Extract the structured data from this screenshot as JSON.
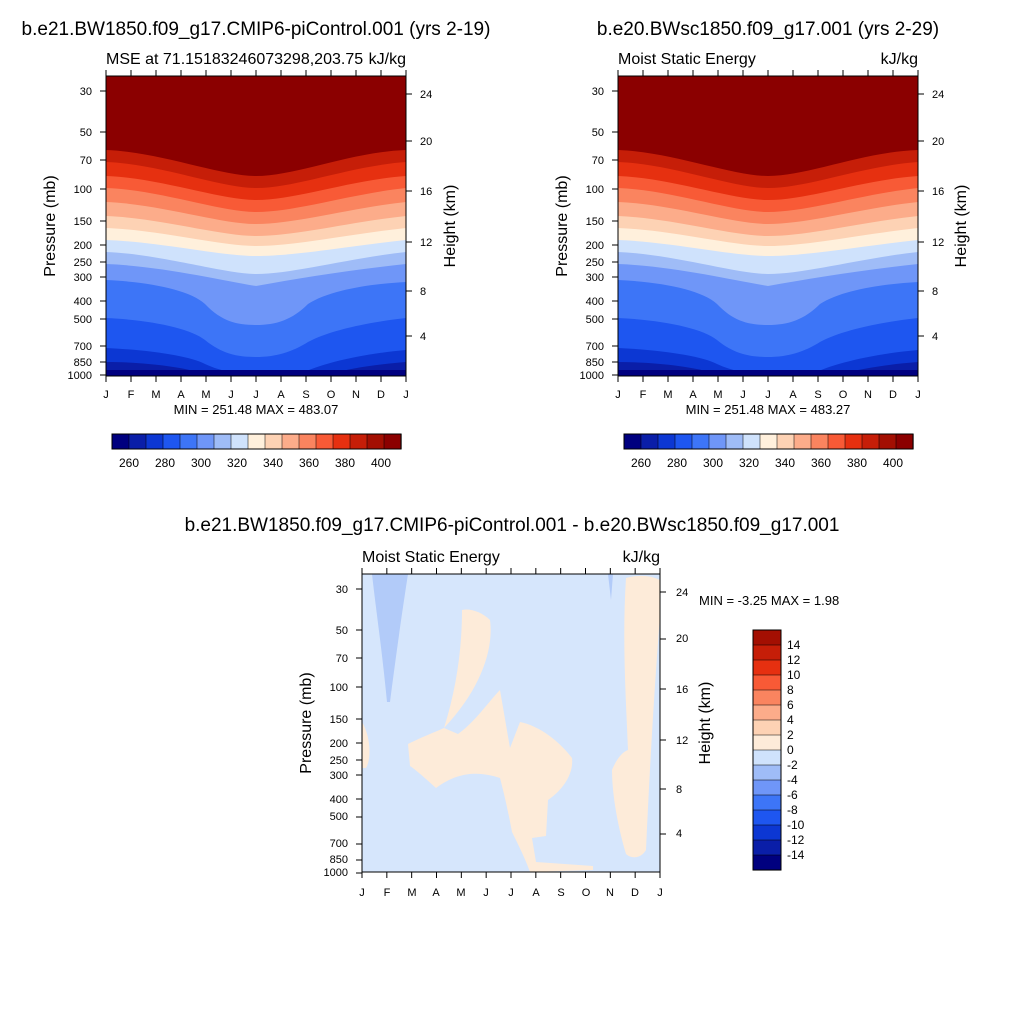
{
  "colors": {
    "mse_levels": [
      "#00007f",
      "#0a1ea8",
      "#0c37d3",
      "#1e56f0",
      "#3d75f7",
      "#6f96f8",
      "#9fbcf7",
      "#cfe2fc",
      "#fff0dc",
      "#fdd2b4",
      "#fcac8a",
      "#fa845f",
      "#f85a36",
      "#e63010",
      "#c61e08",
      "#a30f02",
      "#8b0000"
    ],
    "diff_levels": [
      "#00007f",
      "#0a1ea8",
      "#0c37d3",
      "#1e56f0",
      "#3d75f7",
      "#6f96f8",
      "#9fbcf7",
      "#cfe2fc",
      "#fdebd9",
      "#fdd2b4",
      "#fcac8a",
      "#fa845f",
      "#f85a36",
      "#e63010",
      "#c61e08",
      "#a30f02"
    ]
  },
  "chart_data": [
    {
      "type": "heatmap",
      "title": "b.e21.BW1850.f09_g17.CMIP6-piControl.001 (yrs 2-19)",
      "subtitle_left": "MSE at 71.15183246073298,203.75",
      "subtitle_right": "kJ/kg",
      "ylabel": "Pressure (mb)",
      "y2label": "Height (km)",
      "x_ticks": [
        "J",
        "F",
        "M",
        "A",
        "M",
        "J",
        "J",
        "A",
        "S",
        "O",
        "N",
        "D",
        "J"
      ],
      "y_ticks": [
        "30",
        "50",
        "70",
        "100",
        "150",
        "200",
        "250",
        "300",
        "400",
        "500",
        "700",
        "850",
        "1000"
      ],
      "y2_ticks": [
        "24",
        "20",
        "16",
        "12",
        "8",
        "4"
      ],
      "stats": "MIN = 251.48 MAX = 483.07",
      "colorbar_labels": [
        "260",
        "280",
        "300",
        "320",
        "340",
        "360",
        "380",
        "400"
      ],
      "levels": [
        260,
        270,
        280,
        290,
        300,
        310,
        320,
        330,
        340,
        350,
        360,
        370,
        380,
        390,
        400,
        410
      ]
    },
    {
      "type": "heatmap",
      "title": "b.e20.BWsc1850.f09_g17.001 (yrs 2-29)",
      "subtitle_left": "Moist Static Energy",
      "subtitle_right": "kJ/kg",
      "ylabel": "Pressure (mb)",
      "y2label": "Height (km)",
      "x_ticks": [
        "J",
        "F",
        "M",
        "A",
        "M",
        "J",
        "J",
        "A",
        "S",
        "O",
        "N",
        "D",
        "J"
      ],
      "y_ticks": [
        "30",
        "50",
        "70",
        "100",
        "150",
        "200",
        "250",
        "300",
        "400",
        "500",
        "700",
        "850",
        "1000"
      ],
      "y2_ticks": [
        "24",
        "20",
        "16",
        "12",
        "8",
        "4"
      ],
      "stats": "MIN = 251.48 MAX = 483.27",
      "colorbar_labels": [
        "260",
        "280",
        "300",
        "320",
        "340",
        "360",
        "380",
        "400"
      ],
      "levels": [
        260,
        270,
        280,
        290,
        300,
        310,
        320,
        330,
        340,
        350,
        360,
        370,
        380,
        390,
        400,
        410
      ]
    },
    {
      "type": "heatmap",
      "title": "b.e21.BW1850.f09_g17.CMIP6-piControl.001 - b.e20.BWsc1850.f09_g17.001",
      "subtitle_left": "Moist Static Energy",
      "subtitle_right": "kJ/kg",
      "ylabel": "Pressure (mb)",
      "y2label": "Height (km)",
      "x_ticks": [
        "J",
        "F",
        "M",
        "A",
        "M",
        "J",
        "J",
        "A",
        "S",
        "O",
        "N",
        "D",
        "J"
      ],
      "y_ticks": [
        "30",
        "50",
        "70",
        "100",
        "150",
        "200",
        "250",
        "300",
        "400",
        "500",
        "700",
        "850",
        "1000"
      ],
      "y2_ticks": [
        "24",
        "20",
        "16",
        "12",
        "8",
        "4"
      ],
      "stats": "MIN =  -3.25 MAX =   1.98",
      "colorbar_labels": [
        "14",
        "12",
        "10",
        "8",
        "6",
        "4",
        "2",
        "0",
        "-2",
        "-4",
        "-6",
        "-8",
        "-10",
        "-12",
        "-14"
      ],
      "levels": [
        -14,
        -12,
        -10,
        -8,
        -6,
        -4,
        -2,
        0,
        2,
        4,
        6,
        8,
        10,
        12,
        14
      ]
    }
  ]
}
